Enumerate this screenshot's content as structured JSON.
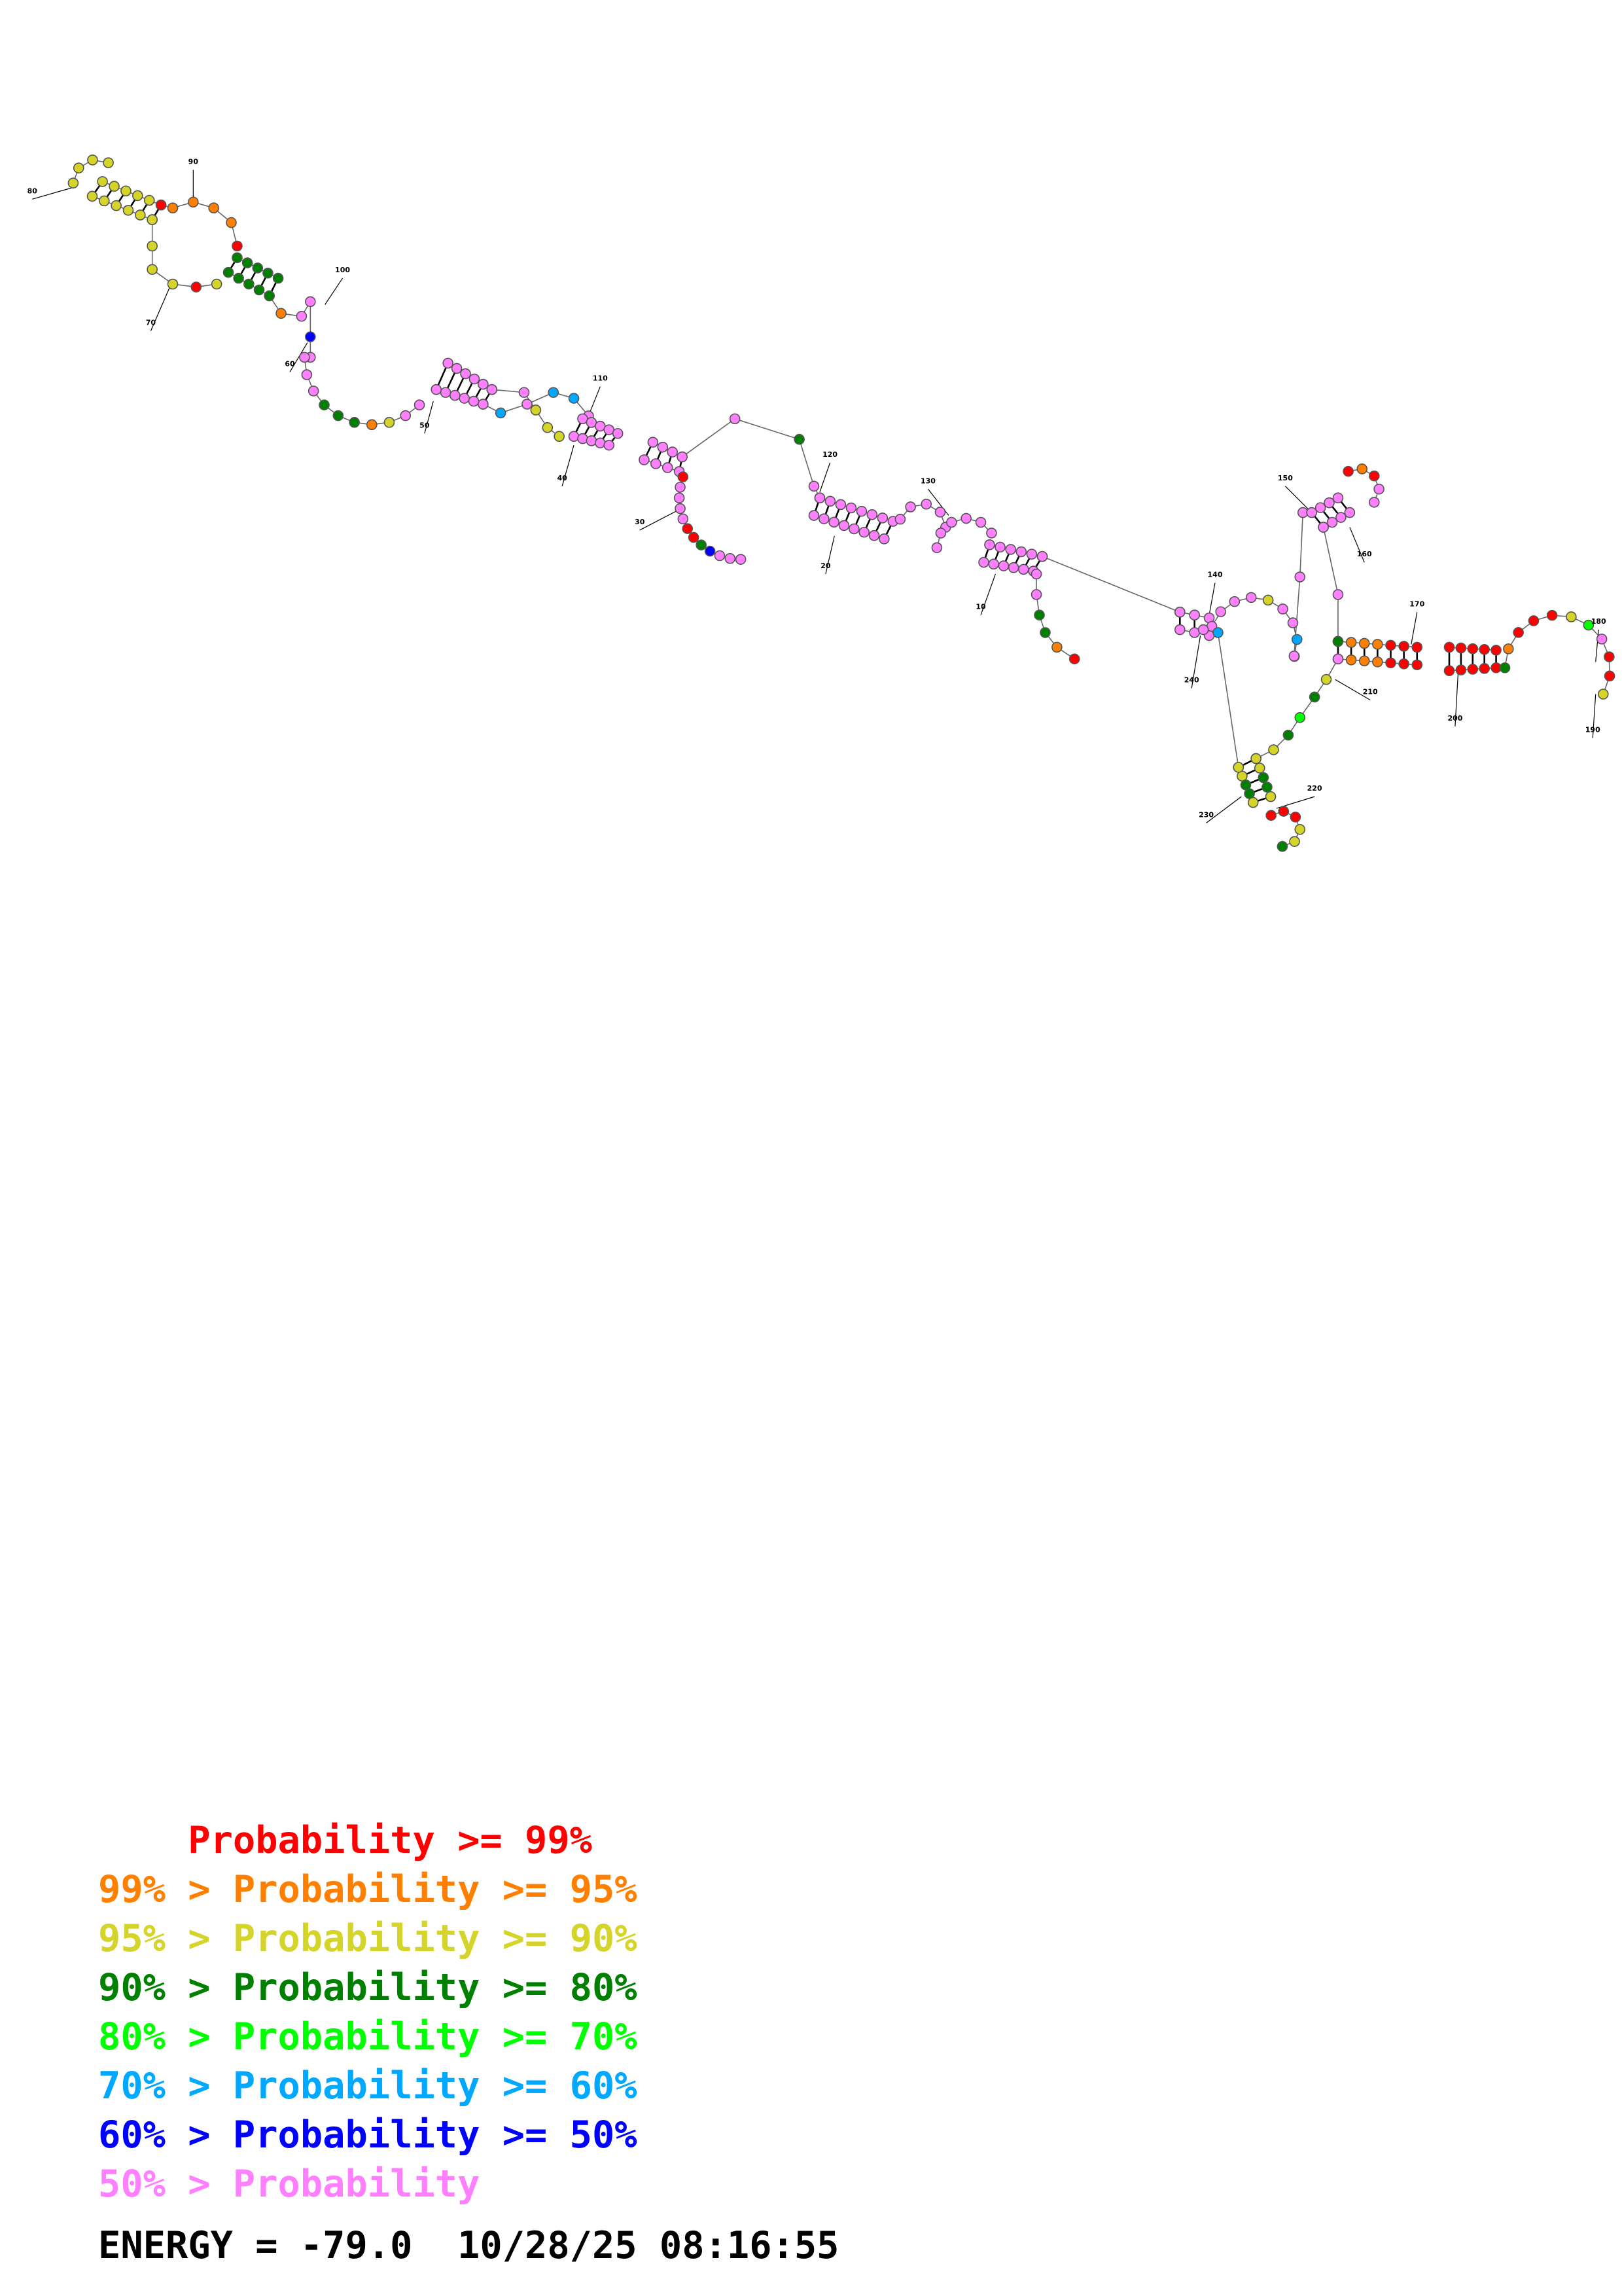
{
  "colors": {
    "p99": "#ff0000",
    "p95": "#ff8000",
    "p90": "#d4d42a",
    "p80": "#008000",
    "p70": "#00ff00",
    "p60": "#00a8ff",
    "p50": "#0000ff",
    "plow": "#ff80ff"
  },
  "legend": {
    "rows": [
      {
        "prefix": "    ",
        "text": "Probability >= 99%",
        "color_key": "p99"
      },
      {
        "prefix": "99% > ",
        "text": "Probability >= 95%",
        "color_key": "p95"
      },
      {
        "prefix": "95% > ",
        "text": "Probability >= 90%",
        "color_key": "p90"
      },
      {
        "prefix": "90% > ",
        "text": "Probability >= 80%",
        "color_key": "p80"
      },
      {
        "prefix": "80% > ",
        "text": "Probability >= 70%",
        "color_key": "p70"
      },
      {
        "prefix": "70% > ",
        "text": "Probability >= 60%",
        "color_key": "p60"
      },
      {
        "prefix": "60% > ",
        "text": "Probability >= 50%",
        "color_key": "p50"
      },
      {
        "prefix": "50% > ",
        "text": "Probability",
        "color_key": "plow"
      }
    ]
  },
  "footer": {
    "energy": "ENERGY = -79.0",
    "timestamp": "10/28/25 08:16:55"
  },
  "structure_labels": [
    "10",
    "20",
    "30",
    "40",
    "50",
    "60",
    "70",
    "80",
    "90",
    "100",
    "110",
    "120",
    "130",
    "140",
    "150",
    "160",
    "170",
    "180",
    "190",
    "200",
    "210",
    "220",
    "230",
    "240"
  ]
}
